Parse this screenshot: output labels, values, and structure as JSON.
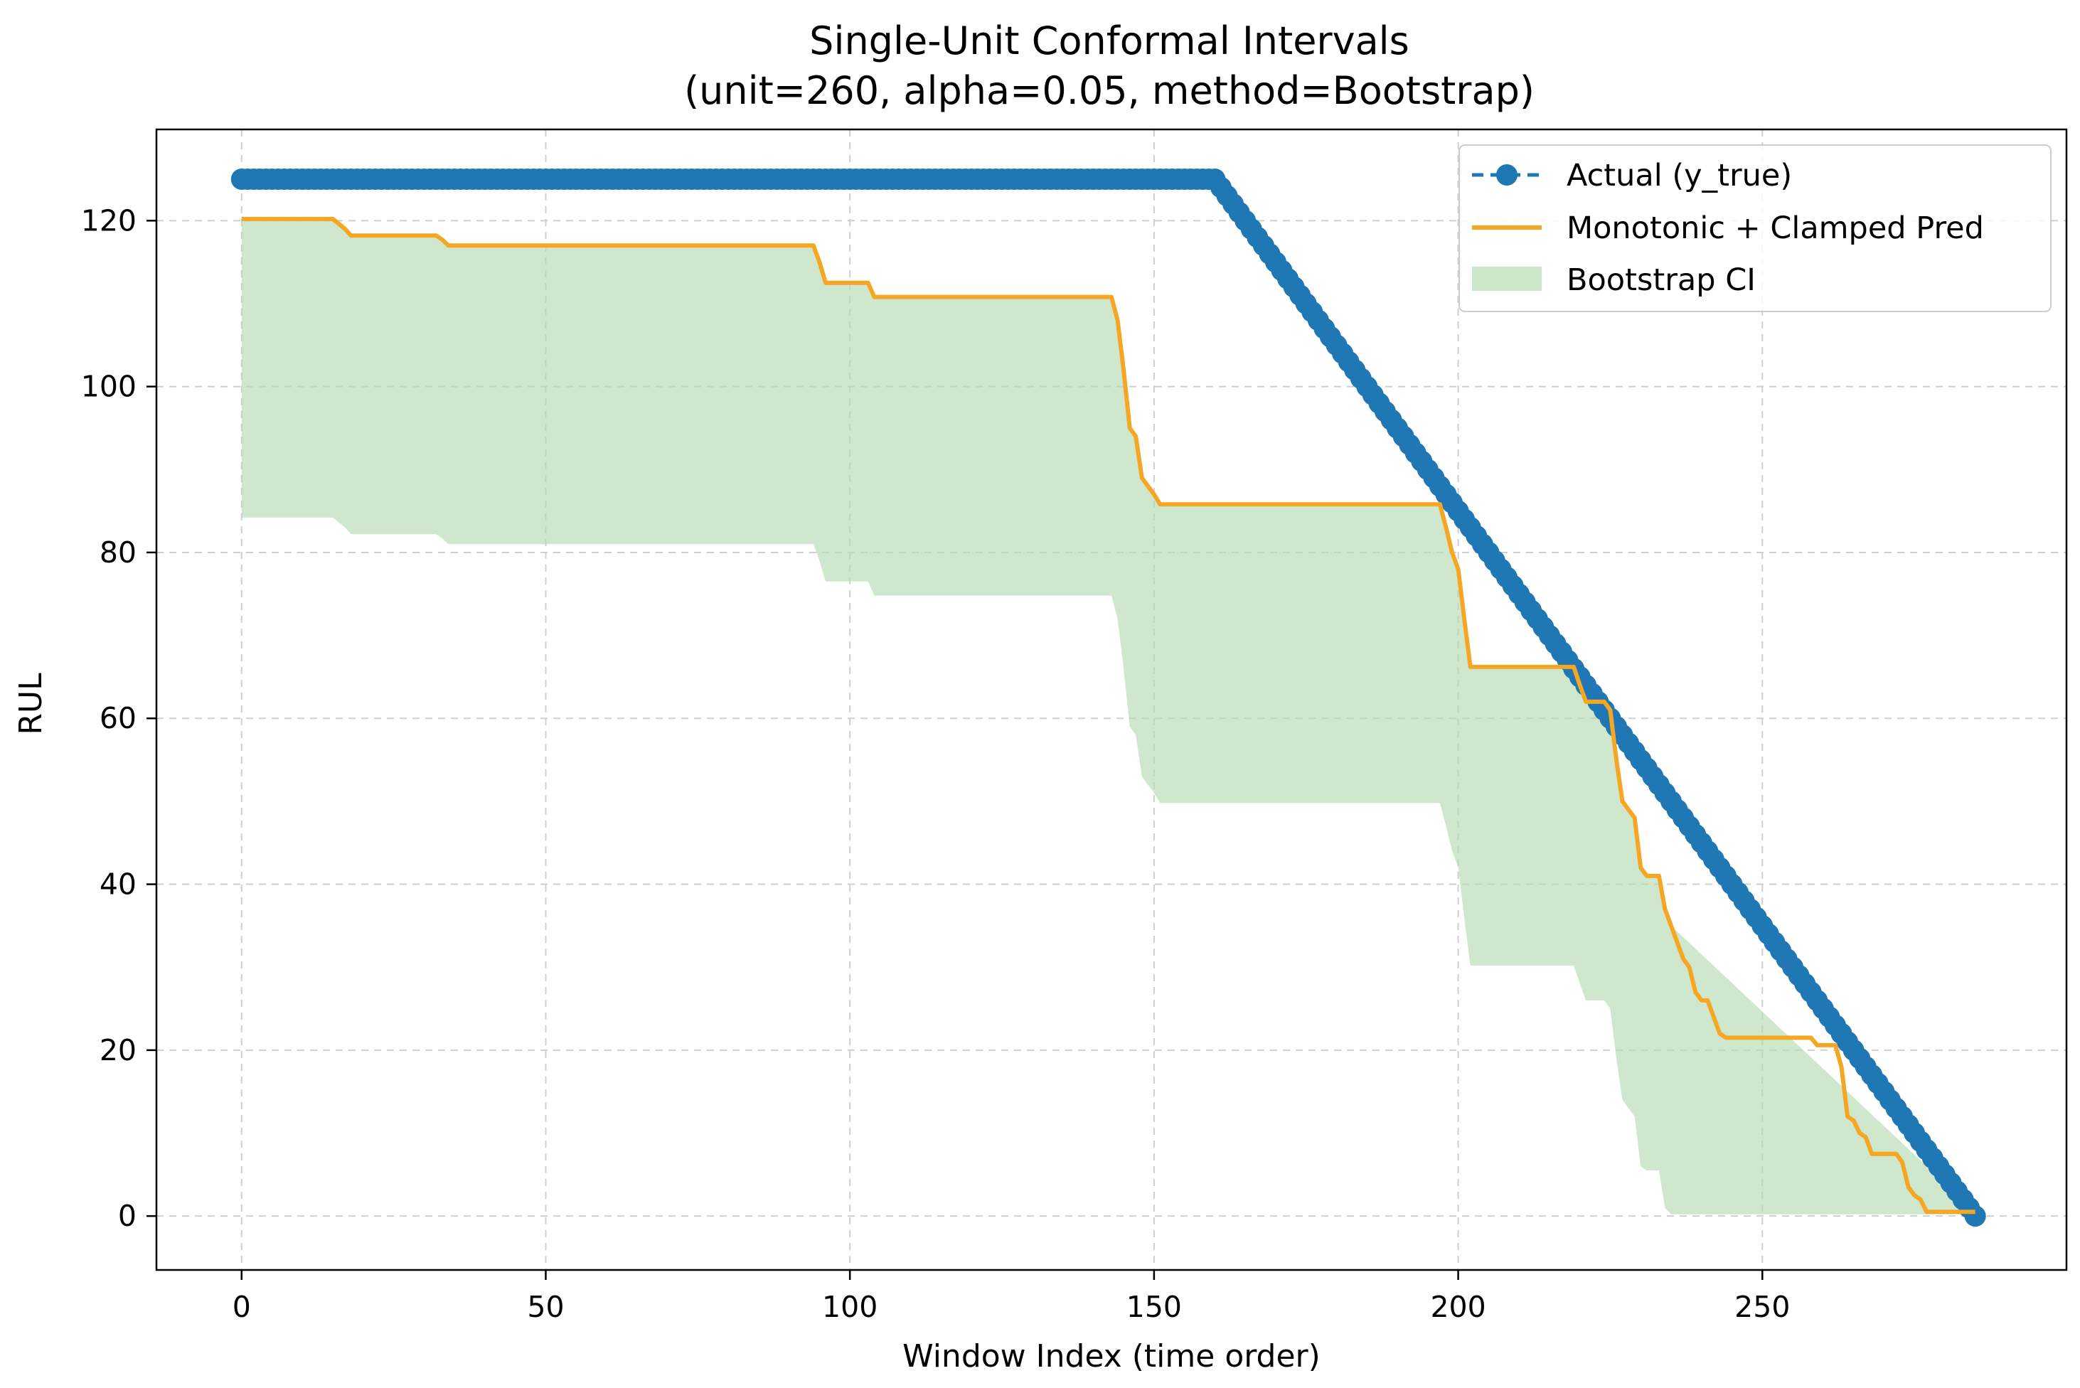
{
  "chart_data": {
    "type": "line",
    "title": "Single-Unit Conformal Intervals",
    "subtitle": "(unit=260, alpha=0.05, method=Bootstrap)",
    "xlabel": "Window Index (time order)",
    "ylabel": "RUL",
    "xlim": [
      -14,
      300
    ],
    "ylim": [
      -6.5,
      131
    ],
    "xticks": [
      0,
      50,
      100,
      150,
      200,
      250
    ],
    "yticks": [
      0,
      20,
      40,
      60,
      80,
      100,
      120
    ],
    "grid": true,
    "legend_position": "top-right",
    "colors": {
      "actual": "#1f77b4",
      "pred": "#f5a623",
      "ci": "#b5dbb2"
    },
    "series": [
      {
        "name": "Actual (y_true)",
        "style": "dashed-circle-markers",
        "x": [
          0,
          160,
          285
        ],
        "y": [
          125,
          125,
          0
        ]
      },
      {
        "name": "Monotonic + Clamped Pred",
        "style": "line",
        "x": [
          0,
          15,
          17,
          18,
          32,
          33,
          34,
          94,
          95,
          96,
          103,
          104,
          143,
          144,
          145,
          146,
          147,
          148,
          149,
          150,
          151,
          197,
          198,
          199,
          200,
          201,
          202,
          219,
          220,
          221,
          224,
          225,
          226,
          227,
          228,
          229,
          230,
          231,
          232,
          233,
          234,
          235,
          236,
          237,
          238,
          239,
          240,
          241,
          242,
          243,
          244,
          258,
          259,
          260,
          262,
          263,
          264,
          265,
          266,
          267,
          268,
          272,
          273,
          274,
          275,
          276,
          277,
          285
        ],
        "y": [
          120.2,
          120.2,
          119,
          118.2,
          118.2,
          117.7,
          117,
          117,
          115,
          112.5,
          112.5,
          110.8,
          110.8,
          108,
          102,
          95,
          94,
          89,
          88,
          87,
          85.8,
          85.8,
          83,
          80,
          78,
          72,
          66.2,
          66.2,
          64,
          62,
          62,
          61,
          55,
          50,
          49,
          48,
          42,
          41,
          41,
          41,
          37,
          35,
          33,
          31,
          30,
          27,
          26,
          26,
          24,
          22,
          21.5,
          21.5,
          20.6,
          20.6,
          20.6,
          18,
          12,
          11.5,
          10,
          9.5,
          7.5,
          7.5,
          6.5,
          3.5,
          2.5,
          2,
          0.5,
          0.5
        ]
      },
      {
        "name": "Bootstrap CI",
        "style": "band",
        "x": [
          0,
          15,
          17,
          18,
          32,
          33,
          34,
          94,
          95,
          96,
          103,
          104,
          143,
          144,
          145,
          146,
          147,
          148,
          149,
          150,
          151,
          197,
          198,
          199,
          200,
          201,
          202,
          219,
          220,
          221,
          224,
          225,
          226,
          227,
          228,
          229,
          230,
          231,
          232,
          233,
          234,
          235,
          285
        ],
        "lower": [
          84.2,
          84.2,
          83,
          82.2,
          82.2,
          81.7,
          81,
          81,
          79,
          76.5,
          76.5,
          74.8,
          74.8,
          72,
          66,
          59,
          58,
          53,
          52,
          51,
          49.8,
          49.8,
          47,
          44,
          42,
          36,
          30.2,
          30.2,
          28,
          26,
          26,
          25,
          19,
          14,
          13,
          12,
          6,
          5.5,
          5.5,
          5.5,
          1,
          0.2,
          0.2
        ],
        "upper": [
          120.2,
          120.2,
          119,
          118.2,
          118.2,
          117.7,
          117,
          117,
          115,
          112.5,
          112.5,
          110.8,
          110.8,
          108,
          102,
          95,
          94,
          89,
          88,
          87,
          85.8,
          85.8,
          83,
          80,
          78,
          72,
          66.2,
          66.2,
          64,
          62,
          62,
          61,
          55,
          50,
          49,
          48,
          42,
          41,
          41,
          41,
          37,
          35,
          0.5
        ]
      }
    ]
  }
}
